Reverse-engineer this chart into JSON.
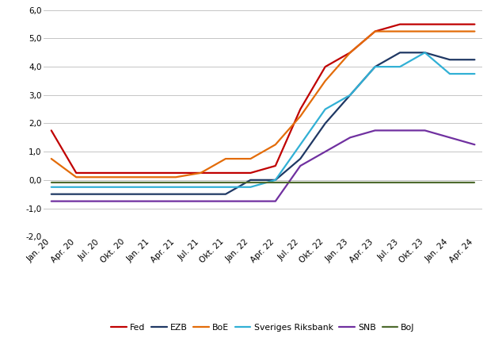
{
  "series": {
    "Fed": {
      "color": "#C00000",
      "values": [
        1.75,
        0.25,
        0.25,
        0.25,
        0.25,
        0.25,
        0.25,
        0.25,
        0.25,
        0.5,
        2.5,
        4.0,
        4.5,
        5.25,
        5.5,
        5.5,
        5.5,
        5.5
      ]
    },
    "EZB": {
      "color": "#1F3864",
      "values": [
        -0.5,
        -0.5,
        -0.5,
        -0.5,
        -0.5,
        -0.5,
        -0.5,
        -0.5,
        0.0,
        0.0,
        0.75,
        2.0,
        3.0,
        4.0,
        4.5,
        4.5,
        4.25,
        4.25
      ]
    },
    "BoE": {
      "color": "#E36C09",
      "values": [
        0.75,
        0.1,
        0.1,
        0.1,
        0.1,
        0.1,
        0.25,
        0.75,
        0.75,
        1.25,
        2.25,
        3.5,
        4.5,
        5.25,
        5.25,
        5.25,
        5.25,
        5.25
      ]
    },
    "Sveriges Riksbank": {
      "color": "#31B0D5",
      "values": [
        -0.25,
        -0.25,
        -0.25,
        -0.25,
        -0.25,
        -0.25,
        -0.25,
        -0.25,
        -0.25,
        0.0,
        1.25,
        2.5,
        3.0,
        4.0,
        4.0,
        4.5,
        3.75,
        3.75
      ]
    },
    "SNB": {
      "color": "#7030A0",
      "values": [
        -0.75,
        -0.75,
        -0.75,
        -0.75,
        -0.75,
        -0.75,
        -0.75,
        -0.75,
        -0.75,
        -0.75,
        0.5,
        1.0,
        1.5,
        1.75,
        1.75,
        1.75,
        1.5,
        1.25
      ]
    },
    "BoJ": {
      "color": "#4E6B2E",
      "values": [
        -0.1,
        -0.1,
        -0.1,
        -0.1,
        -0.1,
        -0.1,
        -0.1,
        -0.1,
        -0.1,
        -0.1,
        -0.1,
        -0.1,
        -0.1,
        -0.1,
        -0.1,
        -0.1,
        -0.1,
        -0.1
      ]
    }
  },
  "x_labels": [
    "Jan. 20",
    "Apr. 20",
    "Jul. 20",
    "Okt. 20",
    "Jan. 21",
    "Apr. 21",
    "Jul. 21",
    "Okt. 21",
    "Jan. 22",
    "Apr. 22",
    "Jul. 22",
    "Okt. 22",
    "Jan. 23",
    "Apr. 23",
    "Jul. 23",
    "Okt. 23",
    "Jan. 24",
    "Apr. 24"
  ],
  "ylim": [
    -2.0,
    6.0
  ],
  "yticks": [
    -2.0,
    -1.0,
    0.0,
    1.0,
    2.0,
    3.0,
    4.0,
    5.0,
    6.0
  ],
  "background_color": "#FFFFFF",
  "grid_color": "#BBBBBB",
  "linewidth": 1.6
}
